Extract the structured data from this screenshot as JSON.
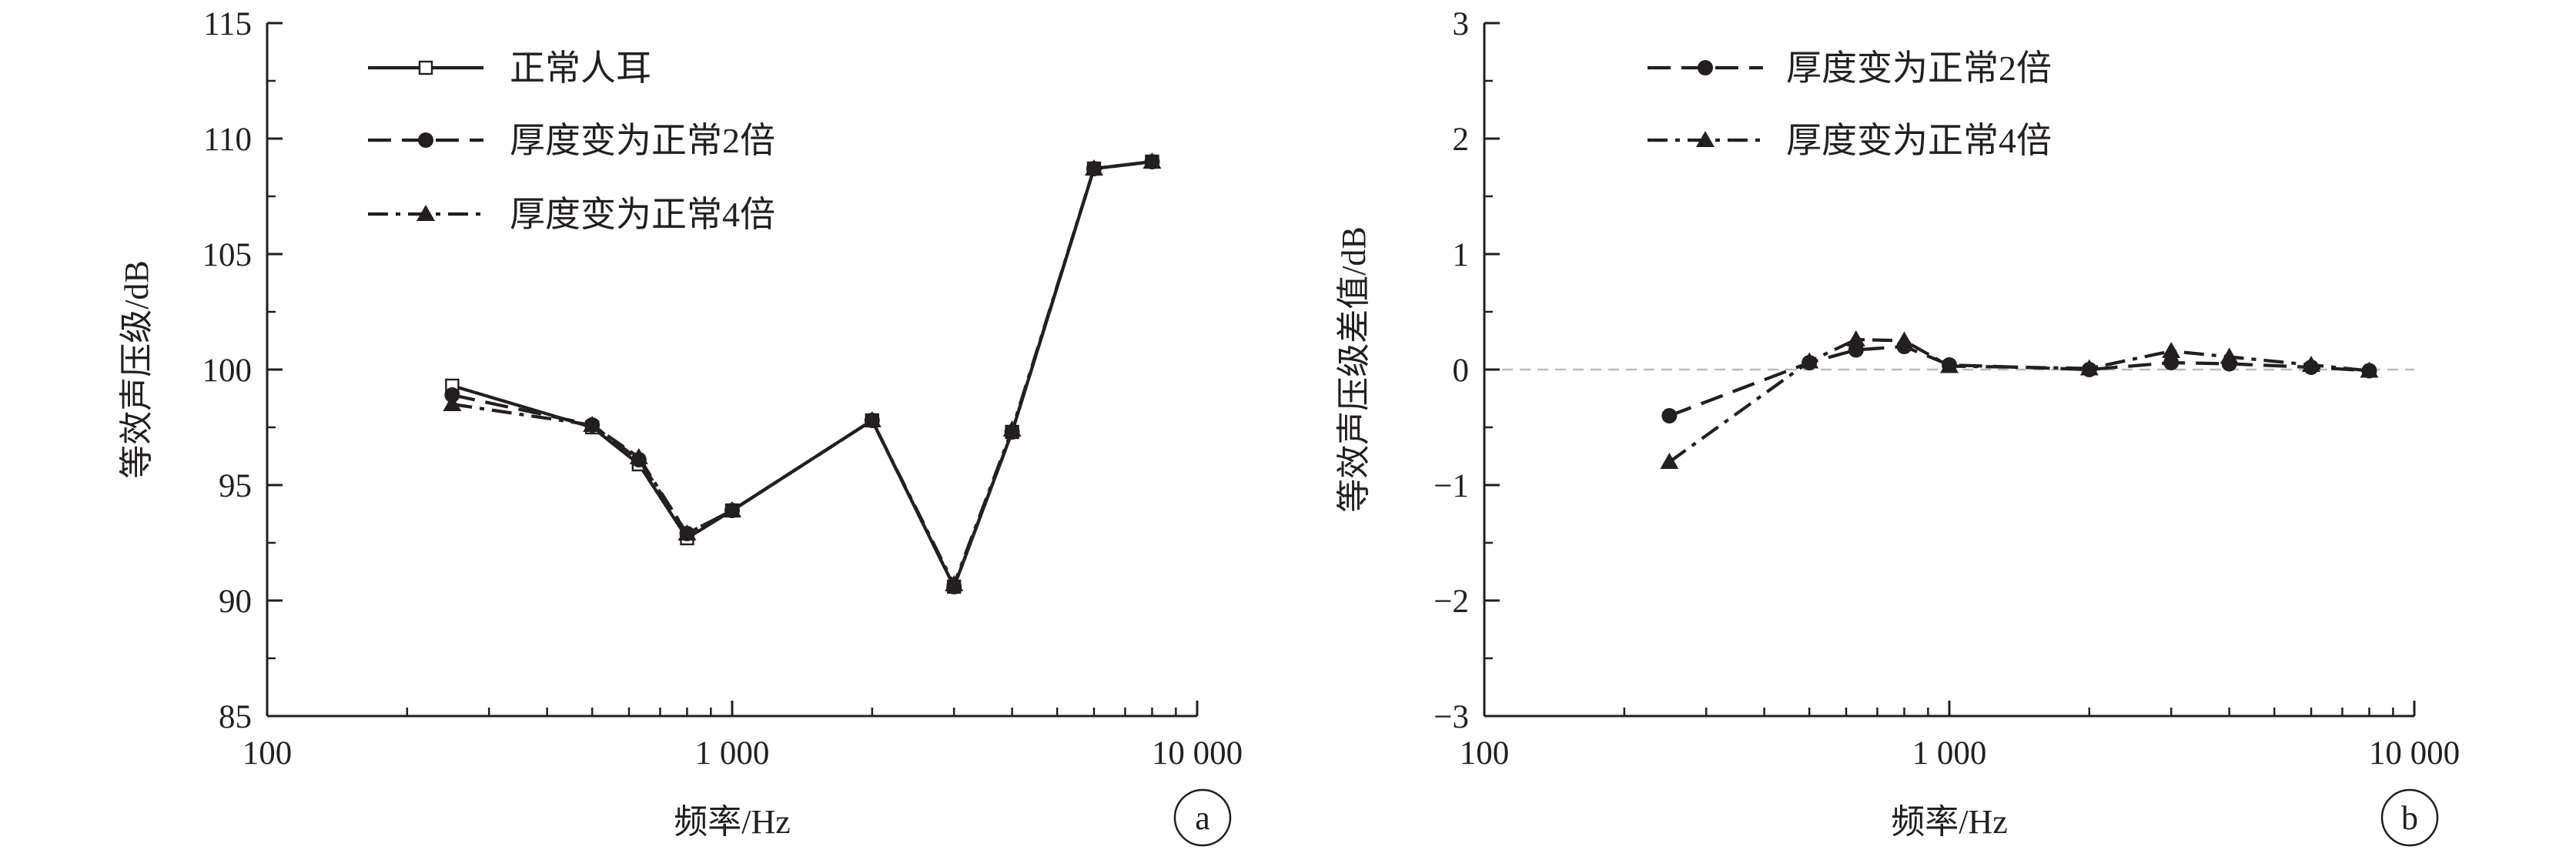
{
  "chart_data": [
    {
      "panel_label": "a",
      "type": "line",
      "xscale": "log",
      "xlim": [
        100,
        10000
      ],
      "ylim": [
        85,
        115
      ],
      "x_ticks": [
        100,
        1000,
        10000
      ],
      "x_tick_labels": [
        "100",
        "1 000",
        "10 000"
      ],
      "y_ticks": [
        85,
        90,
        95,
        100,
        105,
        110,
        115
      ],
      "y_tick_labels": [
        "85",
        "90",
        "95",
        "100",
        "105",
        "110",
        "115"
      ],
      "xlabel": "频率/Hz",
      "ylabel": "等效声压级/dB",
      "legend_position": "top-left",
      "series": [
        {
          "name": "正常人耳",
          "style": "solid",
          "marker": "open-square",
          "x": [
            250,
            500,
            630,
            800,
            1000,
            2000,
            3000,
            4000,
            6000,
            8000
          ],
          "y": [
            99.3,
            97.5,
            95.9,
            92.7,
            93.9,
            97.8,
            90.6,
            97.3,
            108.7,
            109.0
          ]
        },
        {
          "name": "厚度变为正常2倍",
          "style": "dashed",
          "marker": "filled-circle",
          "x": [
            250,
            500,
            630,
            800,
            1000,
            2000,
            3000,
            4000,
            6000,
            8000
          ],
          "y": [
            98.9,
            97.6,
            96.1,
            92.9,
            93.9,
            97.8,
            90.6,
            97.3,
            108.7,
            109.0
          ]
        },
        {
          "name": "厚度变为正常4倍",
          "style": "dashdot",
          "marker": "filled-triangle",
          "x": [
            250,
            500,
            630,
            800,
            1000,
            2000,
            3000,
            4000,
            6000,
            8000
          ],
          "y": [
            98.5,
            97.6,
            96.2,
            92.9,
            93.9,
            97.8,
            90.7,
            97.4,
            108.7,
            109.0
          ]
        }
      ]
    },
    {
      "panel_label": "b",
      "type": "line",
      "xscale": "log",
      "xlim": [
        100,
        10000
      ],
      "ylim": [
        -3,
        3
      ],
      "x_ticks": [
        100,
        1000,
        10000
      ],
      "x_tick_labels": [
        "100",
        "1 000",
        "10 000"
      ],
      "y_ticks": [
        -3,
        -2,
        -1,
        0,
        1,
        2,
        3
      ],
      "y_tick_labels": [
        "−3",
        "−2",
        "−1",
        "0",
        "1",
        "2",
        "3"
      ],
      "xlabel": "频率/Hz",
      "ylabel": "等效声压级差值/dB",
      "reference_line": {
        "y": 0,
        "style": "dashed",
        "color": "#bbbbbb"
      },
      "legend_position": "top-left",
      "series": [
        {
          "name": "厚度变为正常2倍",
          "style": "dashed",
          "marker": "filled-circle",
          "x": [
            250,
            500,
            630,
            800,
            1000,
            2000,
            3000,
            4000,
            6000,
            8000
          ],
          "y": [
            -0.4,
            0.06,
            0.17,
            0.2,
            0.04,
            0.0,
            0.06,
            0.05,
            0.02,
            -0.01
          ]
        },
        {
          "name": "厚度变为正常4倍",
          "style": "dashdot",
          "marker": "filled-triangle",
          "x": [
            250,
            500,
            630,
            800,
            1000,
            2000,
            3000,
            4000,
            6000,
            8000
          ],
          "y": [
            -0.8,
            0.07,
            0.26,
            0.25,
            0.03,
            0.01,
            0.16,
            0.11,
            0.04,
            -0.01
          ]
        }
      ]
    }
  ],
  "colors": {
    "ink": "#231f20",
    "reference": "#bbbbbb",
    "background": "#ffffff"
  }
}
